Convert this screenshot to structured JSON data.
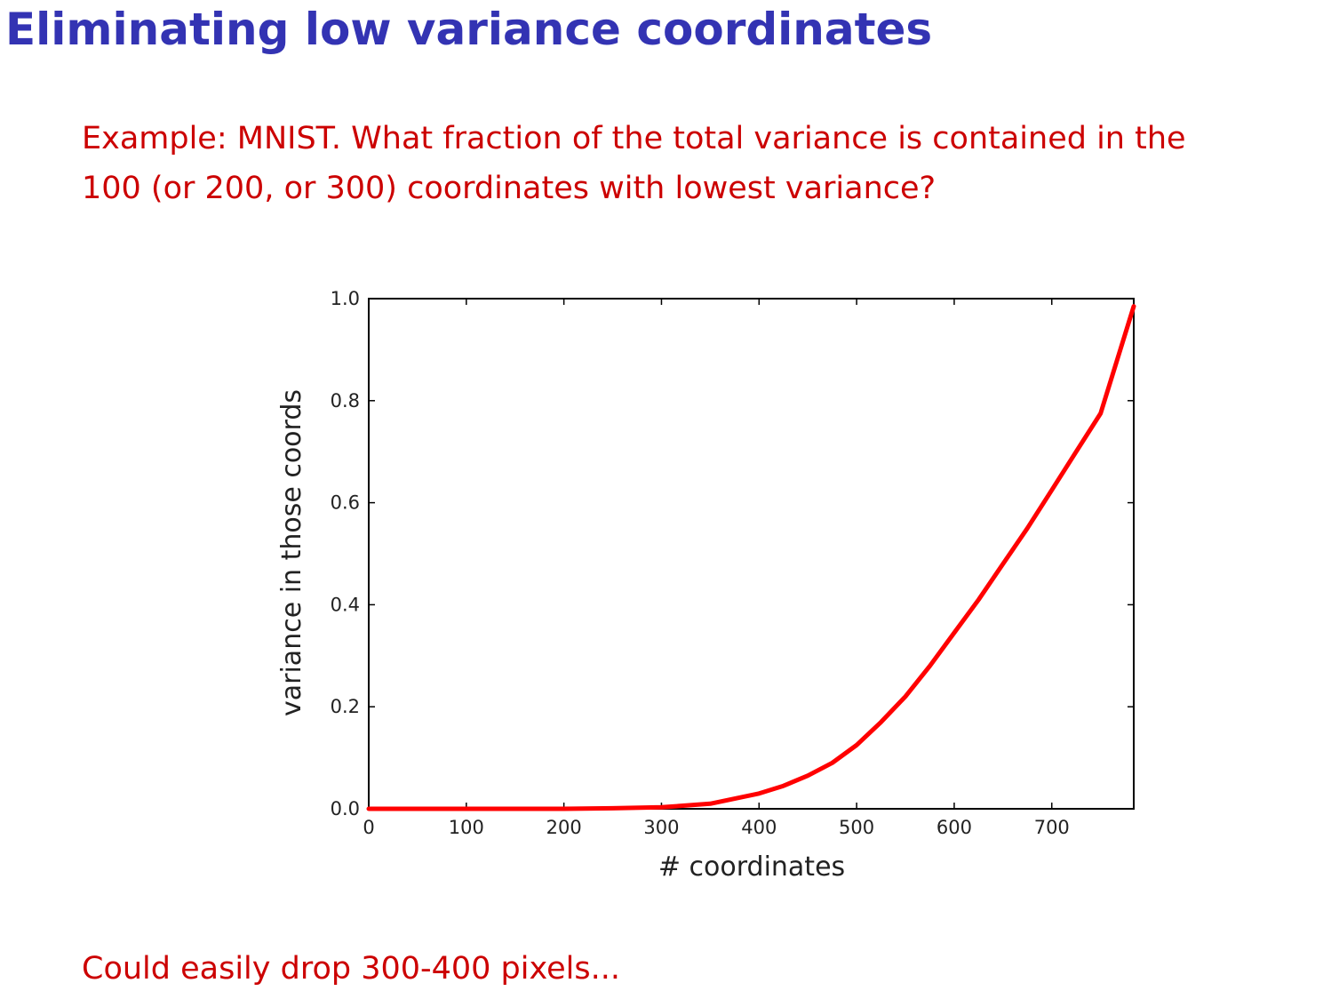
{
  "slide": {
    "title": "Eliminating low variance coordinates",
    "prompt_lines": [
      "Example: MNIST. What fraction of the total variance is contained in the",
      "100 (or 200, or 300) coordinates with lowest variance?"
    ],
    "footer": "Could easily drop 300-400 pixels..."
  },
  "colors": {
    "title": "#3333b3",
    "text": "#cc0000",
    "line": "#ff0000"
  },
  "chart_data": {
    "type": "line",
    "title": "",
    "xlabel": "# coordinates",
    "ylabel": "variance in those coords",
    "xlim": [
      0,
      784
    ],
    "ylim": [
      0,
      1.0
    ],
    "xticks": [
      0,
      100,
      200,
      300,
      400,
      500,
      600,
      700
    ],
    "xtick_labels": [
      "0",
      "100",
      "200",
      "300",
      "400",
      "500",
      "600",
      "700"
    ],
    "yticks": [
      0.0,
      0.2,
      0.4,
      0.6,
      0.8,
      1.0
    ],
    "ytick_labels": [
      "0.0",
      "0.2",
      "0.4",
      "0.6",
      "0.8",
      "1.0"
    ],
    "grid": false,
    "series": [
      {
        "x": [
          0,
          100,
          200,
          250,
          300,
          350,
          400,
          425,
          450,
          475,
          500,
          525,
          550,
          575,
          600,
          625,
          650,
          675,
          700,
          725,
          750,
          784
        ],
        "y": [
          0.0,
          0.0,
          0.0,
          0.001,
          0.003,
          0.01,
          0.03,
          0.045,
          0.065,
          0.09,
          0.125,
          0.17,
          0.22,
          0.28,
          0.345,
          0.41,
          0.48,
          0.55,
          0.625,
          0.7,
          0.775,
          0.985
        ]
      }
    ]
  }
}
